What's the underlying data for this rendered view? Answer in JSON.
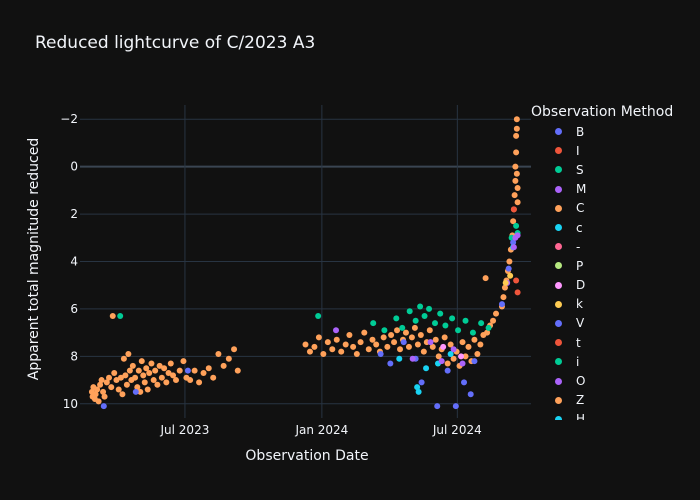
{
  "chart_data": {
    "type": "scatter",
    "title": "Reduced lightcurve of C/2023 A3",
    "xlabel": "Observation Date",
    "ylabel": "Apparent total magnitude reduced",
    "xlim": [
      "2023-02-10",
      "2024-10-08"
    ],
    "ylim": [
      10.6,
      -2.6
    ],
    "y_reversed": true,
    "x_ticks": [
      {
        "date": "2023-07-01",
        "label": "Jul 2023"
      },
      {
        "date": "2024-01-01",
        "label": "Jan 2024"
      },
      {
        "date": "2024-07-01",
        "label": "Jul 2024"
      }
    ],
    "y_ticks": [
      {
        "value": -2,
        "label": "−2"
      },
      {
        "value": 0,
        "label": "0"
      },
      {
        "value": 2,
        "label": "2"
      },
      {
        "value": 4,
        "label": "4"
      },
      {
        "value": 6,
        "label": "6"
      },
      {
        "value": 8,
        "label": "8"
      },
      {
        "value": 10,
        "label": "10"
      }
    ],
    "grid": true,
    "legend": {
      "title": "Observation Method",
      "placement": "right",
      "entries": [
        {
          "name": "B",
          "color": "#636efa"
        },
        {
          "name": "I",
          "color": "#ef553b"
        },
        {
          "name": "S",
          "color": "#00cc96"
        },
        {
          "name": "M",
          "color": "#ab63fa"
        },
        {
          "name": "C",
          "color": "#ffa15a"
        },
        {
          "name": "c",
          "color": "#19d3f3"
        },
        {
          "name": "-",
          "color": "#ff6692"
        },
        {
          "name": "P",
          "color": "#b6e880"
        },
        {
          "name": "D",
          "color": "#ff97ff"
        },
        {
          "name": "k",
          "color": "#fecb52"
        },
        {
          "name": "V",
          "color": "#636efa"
        },
        {
          "name": "t",
          "color": "#ef553b"
        },
        {
          "name": "i",
          "color": "#00cc96"
        },
        {
          "name": "O",
          "color": "#ab63fa"
        },
        {
          "name": "Z",
          "color": "#ffa15a"
        },
        {
          "name": "H",
          "color": "#19d3f3"
        }
      ]
    },
    "series": [
      {
        "name": "C",
        "points": [
          [
            "2023-02-26",
            9.5
          ],
          [
            "2023-02-27",
            9.7
          ],
          [
            "2023-02-28",
            9.3
          ],
          [
            "2023-03-02",
            9.8
          ],
          [
            "2023-03-03",
            9.6
          ],
          [
            "2023-03-05",
            9.4
          ],
          [
            "2023-03-07",
            9.9
          ],
          [
            "2023-03-09",
            9.2
          ],
          [
            "2023-03-11",
            9.0
          ],
          [
            "2023-03-13",
            9.5
          ],
          [
            "2023-03-15",
            9.7
          ],
          [
            "2023-03-18",
            9.1
          ],
          [
            "2023-03-21",
            8.9
          ],
          [
            "2023-03-24",
            9.3
          ],
          [
            "2023-03-26",
            6.3
          ],
          [
            "2023-03-28",
            8.7
          ],
          [
            "2023-03-31",
            9.0
          ],
          [
            "2023-04-03",
            9.4
          ],
          [
            "2023-04-06",
            8.9
          ],
          [
            "2023-04-08",
            9.6
          ],
          [
            "2023-04-10",
            8.1
          ],
          [
            "2023-04-12",
            8.8
          ],
          [
            "2023-04-14",
            9.2
          ],
          [
            "2023-04-16",
            7.9
          ],
          [
            "2023-04-18",
            8.6
          ],
          [
            "2023-04-20",
            9.0
          ],
          [
            "2023-04-22",
            8.4
          ],
          [
            "2023-04-25",
            8.9
          ],
          [
            "2023-04-28",
            9.3
          ],
          [
            "2023-04-30",
            8.6
          ],
          [
            "2023-05-02",
            9.5
          ],
          [
            "2023-05-04",
            8.2
          ],
          [
            "2023-05-06",
            8.8
          ],
          [
            "2023-05-08",
            9.1
          ],
          [
            "2023-05-10",
            8.5
          ],
          [
            "2023-05-12",
            9.4
          ],
          [
            "2023-05-14",
            8.7
          ],
          [
            "2023-05-17",
            8.3
          ],
          [
            "2023-05-20",
            9.0
          ],
          [
            "2023-05-22",
            8.6
          ],
          [
            "2023-05-25",
            9.2
          ],
          [
            "2023-05-28",
            8.4
          ],
          [
            "2023-05-31",
            8.9
          ],
          [
            "2023-06-03",
            8.5
          ],
          [
            "2023-06-06",
            9.1
          ],
          [
            "2023-06-09",
            8.7
          ],
          [
            "2023-06-12",
            8.3
          ],
          [
            "2023-06-15",
            8.8
          ],
          [
            "2023-06-19",
            9.0
          ],
          [
            "2023-06-24",
            8.6
          ],
          [
            "2023-06-29",
            8.2
          ],
          [
            "2023-07-03",
            8.9
          ],
          [
            "2023-07-08",
            9.0
          ],
          [
            "2023-07-14",
            8.6
          ],
          [
            "2023-07-20",
            9.1
          ],
          [
            "2023-07-26",
            8.7
          ],
          [
            "2023-08-02",
            8.5
          ],
          [
            "2023-08-08",
            8.9
          ],
          [
            "2023-08-15",
            7.9
          ],
          [
            "2023-08-22",
            8.4
          ],
          [
            "2023-08-29",
            8.1
          ],
          [
            "2023-09-05",
            7.7
          ],
          [
            "2023-09-10",
            8.6
          ],
          [
            "2023-12-10",
            7.5
          ],
          [
            "2023-12-16",
            7.8
          ],
          [
            "2023-12-22",
            7.6
          ],
          [
            "2023-12-28",
            7.2
          ],
          [
            "2024-01-03",
            7.9
          ],
          [
            "2024-01-09",
            7.4
          ],
          [
            "2024-01-15",
            7.7
          ],
          [
            "2024-01-21",
            7.3
          ],
          [
            "2024-01-27",
            7.8
          ],
          [
            "2024-02-02",
            7.5
          ],
          [
            "2024-02-07",
            7.1
          ],
          [
            "2024-02-12",
            7.6
          ],
          [
            "2024-02-17",
            7.9
          ],
          [
            "2024-02-22",
            7.4
          ],
          [
            "2024-02-27",
            7.0
          ],
          [
            "2024-03-04",
            7.7
          ],
          [
            "2024-03-09",
            7.3
          ],
          [
            "2024-03-14",
            7.5
          ],
          [
            "2024-03-19",
            7.8
          ],
          [
            "2024-03-24",
            7.2
          ],
          [
            "2024-03-29",
            7.6
          ],
          [
            "2024-04-03",
            7.1
          ],
          [
            "2024-04-07",
            7.4
          ],
          [
            "2024-04-11",
            6.9
          ],
          [
            "2024-04-15",
            7.7
          ],
          [
            "2024-04-19",
            7.3
          ],
          [
            "2024-04-23",
            7.0
          ],
          [
            "2024-04-27",
            7.6
          ],
          [
            "2024-05-01",
            7.2
          ],
          [
            "2024-05-05",
            6.8
          ],
          [
            "2024-05-09",
            7.5
          ],
          [
            "2024-05-13",
            7.1
          ],
          [
            "2024-05-17",
            7.8
          ],
          [
            "2024-05-21",
            7.4
          ],
          [
            "2024-05-25",
            6.9
          ],
          [
            "2024-05-29",
            7.6
          ],
          [
            "2024-06-02",
            7.3
          ],
          [
            "2024-06-06",
            8.0
          ],
          [
            "2024-06-10",
            7.7
          ],
          [
            "2024-06-14",
            7.2
          ],
          [
            "2024-06-18",
            8.3
          ],
          [
            "2024-06-22",
            7.5
          ],
          [
            "2024-06-26",
            8.1
          ],
          [
            "2024-06-30",
            7.8
          ],
          [
            "2024-07-04",
            8.4
          ],
          [
            "2024-07-08",
            7.4
          ],
          [
            "2024-07-12",
            8.0
          ],
          [
            "2024-07-16",
            7.6
          ],
          [
            "2024-07-20",
            8.2
          ],
          [
            "2024-07-24",
            7.3
          ],
          [
            "2024-07-28",
            7.9
          ],
          [
            "2024-08-01",
            7.5
          ],
          [
            "2024-08-05",
            7.1
          ],
          [
            "2024-08-08",
            4.7
          ],
          [
            "2024-08-10",
            7.0
          ],
          [
            "2024-08-14",
            6.7
          ],
          [
            "2024-08-18",
            6.5
          ],
          [
            "2024-08-22",
            6.2
          ],
          [
            "2024-08-30",
            5.9
          ],
          [
            "2024-09-01",
            5.5
          ],
          [
            "2024-09-03",
            5.1
          ],
          [
            "2024-09-05",
            4.8
          ],
          [
            "2024-09-07",
            4.4
          ],
          [
            "2024-09-09",
            4.0
          ],
          [
            "2024-09-11",
            3.5
          ],
          [
            "2024-09-13",
            2.9
          ],
          [
            "2024-09-14",
            2.3
          ],
          [
            "2024-09-15",
            1.8
          ],
          [
            "2024-09-16",
            1.2
          ],
          [
            "2024-09-17",
            0.6
          ],
          [
            "2024-09-17",
            0.0
          ],
          [
            "2024-09-18",
            -0.6
          ],
          [
            "2024-09-18",
            -1.3
          ],
          [
            "2024-09-19",
            -2.0
          ],
          [
            "2024-09-19",
            -1.6
          ],
          [
            "2024-09-19",
            0.3
          ],
          [
            "2024-09-20",
            0.9
          ],
          [
            "2024-09-20",
            1.5
          ]
        ]
      },
      {
        "name": "S",
        "points": [
          [
            "2023-04-05",
            6.3
          ],
          [
            "2023-12-27",
            6.3
          ],
          [
            "2024-03-10",
            6.6
          ],
          [
            "2024-03-25",
            6.9
          ],
          [
            "2024-04-10",
            6.4
          ],
          [
            "2024-04-18",
            6.8
          ],
          [
            "2024-04-28",
            6.1
          ],
          [
            "2024-05-06",
            6.5
          ],
          [
            "2024-05-12",
            5.9
          ],
          [
            "2024-05-18",
            6.3
          ],
          [
            "2024-05-24",
            6.0
          ],
          [
            "2024-06-01",
            6.6
          ],
          [
            "2024-06-08",
            6.2
          ],
          [
            "2024-06-15",
            6.7
          ],
          [
            "2024-06-24",
            6.4
          ],
          [
            "2024-07-02",
            6.9
          ],
          [
            "2024-07-12",
            6.5
          ],
          [
            "2024-07-22",
            7.0
          ],
          [
            "2024-08-02",
            6.6
          ],
          [
            "2024-08-12",
            6.8
          ],
          [
            "2024-09-12",
            3.0
          ],
          [
            "2024-09-18",
            2.5
          ],
          [
            "2024-09-20",
            2.8
          ]
        ]
      },
      {
        "name": "B",
        "points": [
          [
            "2023-03-14",
            10.1
          ],
          [
            "2023-04-26",
            9.5
          ],
          [
            "2023-07-05",
            8.6
          ],
          [
            "2024-03-20",
            7.9
          ],
          [
            "2024-04-02",
            8.3
          ],
          [
            "2024-04-20",
            7.4
          ],
          [
            "2024-05-06",
            8.1
          ],
          [
            "2024-05-14",
            9.1
          ],
          [
            "2024-06-04",
            10.1
          ],
          [
            "2024-06-18",
            8.6
          ],
          [
            "2024-06-29",
            10.1
          ],
          [
            "2024-07-10",
            9.1
          ],
          [
            "2024-07-19",
            9.6
          ],
          [
            "2024-07-24",
            8.2
          ],
          [
            "2024-08-30",
            5.8
          ],
          [
            "2024-09-08",
            4.3
          ],
          [
            "2024-09-14",
            3.2
          ]
        ]
      },
      {
        "name": "c",
        "points": [
          [
            "2024-04-14",
            8.1
          ],
          [
            "2024-05-08",
            9.3
          ],
          [
            "2024-05-10",
            9.5
          ],
          [
            "2024-05-20",
            8.5
          ],
          [
            "2024-06-05",
            8.3
          ],
          [
            "2024-06-22",
            7.9
          ],
          [
            "2024-09-14",
            3.4
          ]
        ]
      },
      {
        "name": "M",
        "points": [
          [
            "2024-01-20",
            6.9
          ],
          [
            "2024-05-02",
            8.1
          ],
          [
            "2024-05-26",
            7.4
          ],
          [
            "2024-06-10",
            8.2
          ],
          [
            "2024-06-26",
            7.7
          ],
          [
            "2024-07-08",
            8.3
          ],
          [
            "2024-09-06",
            4.9
          ],
          [
            "2024-09-15",
            3.4
          ],
          [
            "2024-09-17",
            3.0
          ],
          [
            "2024-09-20",
            2.9
          ]
        ]
      },
      {
        "name": "I",
        "points": [
          [
            "2024-09-18",
            4.8
          ],
          [
            "2024-09-20",
            5.3
          ],
          [
            "2024-09-15",
            1.8
          ]
        ]
      },
      {
        "name": "k",
        "points": [
          [
            "2024-09-04",
            4.9
          ],
          [
            "2024-09-10",
            4.6
          ]
        ]
      },
      {
        "name": "D",
        "points": [
          [
            "2024-06-12",
            7.6
          ],
          [
            "2024-07-06",
            8.0
          ]
        ]
      }
    ]
  }
}
